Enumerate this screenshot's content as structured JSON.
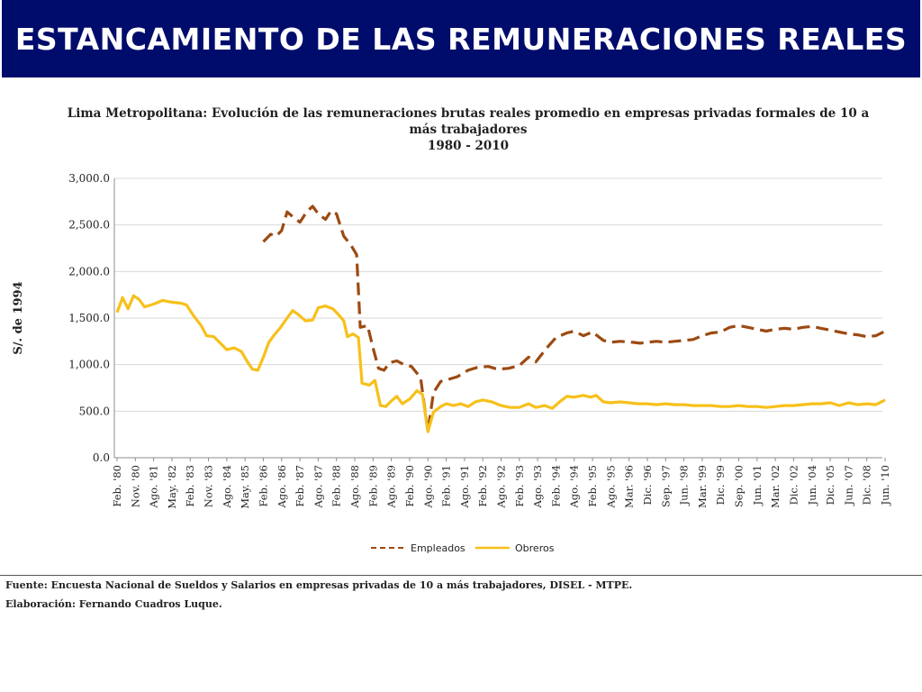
{
  "slide": {
    "title": "ESTANCAMIENTO DE LAS REMUNERACIONES REALES",
    "chart_title_line1": "Lima Metropolitana: Evolución de las remuneraciones brutas reales promedio en empresas privadas formales de 10 a",
    "chart_title_line2": "más trabajadores",
    "chart_title_line3": "1980 - 2010",
    "source": "Fuente: Encuesta Nacional de Sueldos y Salarios en empresas privadas de 10 a más trabajadores, DISEL - MTPE.",
    "credit": "Elaboración: Fernando Cuadros Luque."
  },
  "colors": {
    "banner": "#000c6c",
    "empleados": "#9c4a12",
    "obreros": "#f7c01a",
    "grid": "#d9d9d9"
  },
  "chart_data": {
    "type": "line",
    "title": "Lima Metropolitana: Evolución de las remuneraciones brutas reales promedio en empresas privadas formales de 10 a más trabajadores 1980 - 2010",
    "ylabel": "S/. de 1994",
    "xlabel": "",
    "ylim": [
      0,
      3000
    ],
    "yticks": [
      "0.0",
      "500.0",
      "1,000.0",
      "1,500.0",
      "2,000.0",
      "2,500.0",
      "3,000.0"
    ],
    "grid": true,
    "legend_position": "bottom",
    "x_ticks": [
      "Feb. '80",
      "Nov. '80",
      "Ago. '81",
      "May. '82",
      "Feb. '83",
      "Nov. '83",
      "Ago. '84",
      "May. '85",
      "Feb. '86",
      "Ago. '86",
      "Feb. '87",
      "Ago. '87",
      "Feb. '88",
      "Ago. '88",
      "Feb. '89",
      "Ago. '89",
      "Feb. '90",
      "Ago. '90",
      "Feb. '91",
      "Ago. '91",
      "Feb. '92",
      "Ago. '92",
      "Feb. '93",
      "Ago. '93",
      "Feb. '94",
      "Ago. '94",
      "Feb. '95",
      "Ago. '95",
      "Mar. '96",
      "Dic. '96",
      "Sep. '97",
      "Jun. '98",
      "Mar. '99",
      "Dic. '99",
      "Sep. '00",
      "Jun. '01",
      "Mar. '02",
      "Dic. '02",
      "Jun. '04",
      "Dic. '05",
      "Jun. '07",
      "Dic. '08",
      "Jun. '10"
    ],
    "series": [
      {
        "name": "Empleados",
        "style": "dashed",
        "points": [
          [
            8,
            2320
          ],
          [
            8.4,
            2400
          ],
          [
            8.7,
            2380
          ],
          [
            9,
            2440
          ],
          [
            9.3,
            2640
          ],
          [
            9.6,
            2590
          ],
          [
            10,
            2530
          ],
          [
            10.4,
            2650
          ],
          [
            10.7,
            2700
          ],
          [
            11,
            2620
          ],
          [
            11.4,
            2560
          ],
          [
            11.7,
            2650
          ],
          [
            12,
            2620
          ],
          [
            12.4,
            2380
          ],
          [
            12.8,
            2280
          ],
          [
            13.1,
            2180
          ],
          [
            13.3,
            1400
          ],
          [
            13.7,
            1420
          ],
          [
            14,
            1180
          ],
          [
            14.3,
            960
          ],
          [
            14.6,
            940
          ],
          [
            14.9,
            1020
          ],
          [
            15.3,
            1040
          ],
          [
            15.7,
            1000
          ],
          [
            16.1,
            980
          ],
          [
            16.6,
            860
          ],
          [
            17.0,
            280
          ],
          [
            17.3,
            700
          ],
          [
            17.7,
            820
          ],
          [
            18.1,
            840
          ],
          [
            18.6,
            870
          ],
          [
            19.2,
            940
          ],
          [
            19.7,
            970
          ],
          [
            20.3,
            980
          ],
          [
            20.8,
            950
          ],
          [
            21.4,
            960
          ],
          [
            22.0,
            990
          ],
          [
            22.5,
            1080
          ],
          [
            22.9,
            1030
          ],
          [
            23.5,
            1180
          ],
          [
            24.0,
            1290
          ],
          [
            24.6,
            1340
          ],
          [
            25.0,
            1360
          ],
          [
            25.5,
            1310
          ],
          [
            26.0,
            1350
          ],
          [
            26.6,
            1260
          ],
          [
            27.0,
            1240
          ],
          [
            27.5,
            1250
          ],
          [
            28.2,
            1240
          ],
          [
            28.6,
            1230
          ],
          [
            29.0,
            1240
          ],
          [
            29.5,
            1250
          ],
          [
            30.0,
            1240
          ],
          [
            30.5,
            1250
          ],
          [
            31.0,
            1260
          ],
          [
            31.5,
            1270
          ],
          [
            32.0,
            1310
          ],
          [
            32.5,
            1340
          ],
          [
            33.0,
            1350
          ],
          [
            33.5,
            1400
          ],
          [
            34.0,
            1420
          ],
          [
            34.5,
            1400
          ],
          [
            35.0,
            1380
          ],
          [
            35.5,
            1360
          ],
          [
            36.0,
            1380
          ],
          [
            36.5,
            1390
          ],
          [
            37.0,
            1380
          ],
          [
            37.5,
            1400
          ],
          [
            38.0,
            1410
          ],
          [
            38.5,
            1390
          ],
          [
            39.0,
            1370
          ],
          [
            39.5,
            1350
          ],
          [
            40.0,
            1330
          ],
          [
            40.5,
            1320
          ],
          [
            41.0,
            1300
          ],
          [
            41.5,
            1310
          ],
          [
            42.0,
            1360
          ]
        ]
      },
      {
        "name": "Obreros",
        "style": "solid",
        "points": [
          [
            0,
            1560
          ],
          [
            0.3,
            1720
          ],
          [
            0.6,
            1600
          ],
          [
            0.9,
            1740
          ],
          [
            1.2,
            1700
          ],
          [
            1.5,
            1620
          ],
          [
            2.0,
            1650
          ],
          [
            2.5,
            1690
          ],
          [
            3.0,
            1670
          ],
          [
            3.5,
            1660
          ],
          [
            3.8,
            1640
          ],
          [
            4.2,
            1520
          ],
          [
            4.6,
            1420
          ],
          [
            4.9,
            1310
          ],
          [
            5.3,
            1300
          ],
          [
            5.6,
            1240
          ],
          [
            6.0,
            1160
          ],
          [
            6.4,
            1180
          ],
          [
            6.8,
            1140
          ],
          [
            7.1,
            1040
          ],
          [
            7.4,
            950
          ],
          [
            7.7,
            940
          ],
          [
            8.0,
            1080
          ],
          [
            8.3,
            1240
          ],
          [
            8.6,
            1320
          ],
          [
            8.9,
            1390
          ],
          [
            9.3,
            1500
          ],
          [
            9.6,
            1580
          ],
          [
            9.9,
            1540
          ],
          [
            10.3,
            1470
          ],
          [
            10.7,
            1480
          ],
          [
            11.0,
            1610
          ],
          [
            11.4,
            1630
          ],
          [
            11.8,
            1600
          ],
          [
            12.1,
            1540
          ],
          [
            12.4,
            1470
          ],
          [
            12.6,
            1300
          ],
          [
            12.9,
            1330
          ],
          [
            13.2,
            1290
          ],
          [
            13.4,
            800
          ],
          [
            13.8,
            780
          ],
          [
            14.1,
            830
          ],
          [
            14.4,
            560
          ],
          [
            14.7,
            550
          ],
          [
            15.0,
            610
          ],
          [
            15.3,
            660
          ],
          [
            15.6,
            580
          ],
          [
            16.0,
            630
          ],
          [
            16.4,
            720
          ],
          [
            16.7,
            680
          ],
          [
            17.0,
            280
          ],
          [
            17.3,
            490
          ],
          [
            17.7,
            550
          ],
          [
            18.0,
            580
          ],
          [
            18.4,
            560
          ],
          [
            18.8,
            580
          ],
          [
            19.2,
            550
          ],
          [
            19.6,
            600
          ],
          [
            20.0,
            620
          ],
          [
            20.5,
            600
          ],
          [
            21.0,
            560
          ],
          [
            21.5,
            540
          ],
          [
            22.0,
            540
          ],
          [
            22.5,
            580
          ],
          [
            22.9,
            540
          ],
          [
            23.4,
            560
          ],
          [
            23.8,
            530
          ],
          [
            24.2,
            600
          ],
          [
            24.6,
            660
          ],
          [
            25.0,
            650
          ],
          [
            25.5,
            670
          ],
          [
            25.9,
            650
          ],
          [
            26.2,
            670
          ],
          [
            26.6,
            600
          ],
          [
            27.0,
            590
          ],
          [
            27.5,
            600
          ],
          [
            28.0,
            590
          ],
          [
            28.5,
            580
          ],
          [
            29.0,
            580
          ],
          [
            29.5,
            570
          ],
          [
            30.0,
            580
          ],
          [
            30.5,
            570
          ],
          [
            31.0,
            570
          ],
          [
            31.5,
            560
          ],
          [
            32.0,
            560
          ],
          [
            32.5,
            560
          ],
          [
            33.0,
            550
          ],
          [
            33.5,
            550
          ],
          [
            34.0,
            560
          ],
          [
            34.5,
            550
          ],
          [
            35.0,
            550
          ],
          [
            35.5,
            540
          ],
          [
            36.0,
            550
          ],
          [
            36.5,
            560
          ],
          [
            37.0,
            560
          ],
          [
            37.5,
            570
          ],
          [
            38.0,
            580
          ],
          [
            38.5,
            580
          ],
          [
            39.0,
            590
          ],
          [
            39.5,
            560
          ],
          [
            40.0,
            590
          ],
          [
            40.5,
            570
          ],
          [
            41.0,
            580
          ],
          [
            41.5,
            570
          ],
          [
            42.0,
            620
          ]
        ]
      }
    ]
  }
}
